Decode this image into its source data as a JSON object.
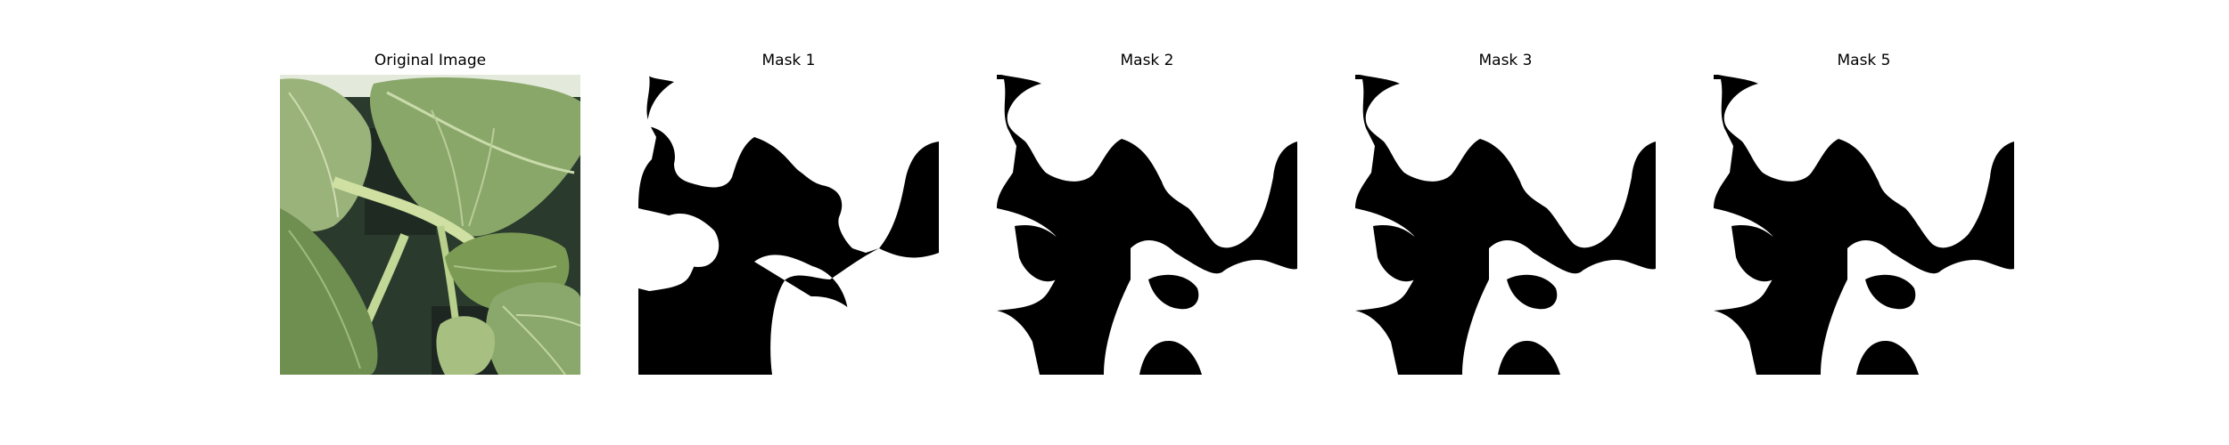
{
  "figure": {
    "panels": [
      {
        "title": "Original Image",
        "kind": "photo",
        "subject": "green leaves"
      },
      {
        "title": "Mask 1",
        "kind": "binary-mask"
      },
      {
        "title": "Mask 2",
        "kind": "binary-mask"
      },
      {
        "title": "Mask 3",
        "kind": "binary-mask"
      },
      {
        "title": "Mask 5",
        "kind": "binary-mask"
      }
    ]
  },
  "colors": {
    "background": "#ffffff",
    "mask_foreground": "#ffffff",
    "mask_background": "#000000",
    "leaf_light": "#9fb87a",
    "leaf_mid": "#7d9a5c",
    "leaf_dark": "#4f6e3a",
    "stem": "#c7d99a",
    "shadow": "#1f2a1e"
  }
}
